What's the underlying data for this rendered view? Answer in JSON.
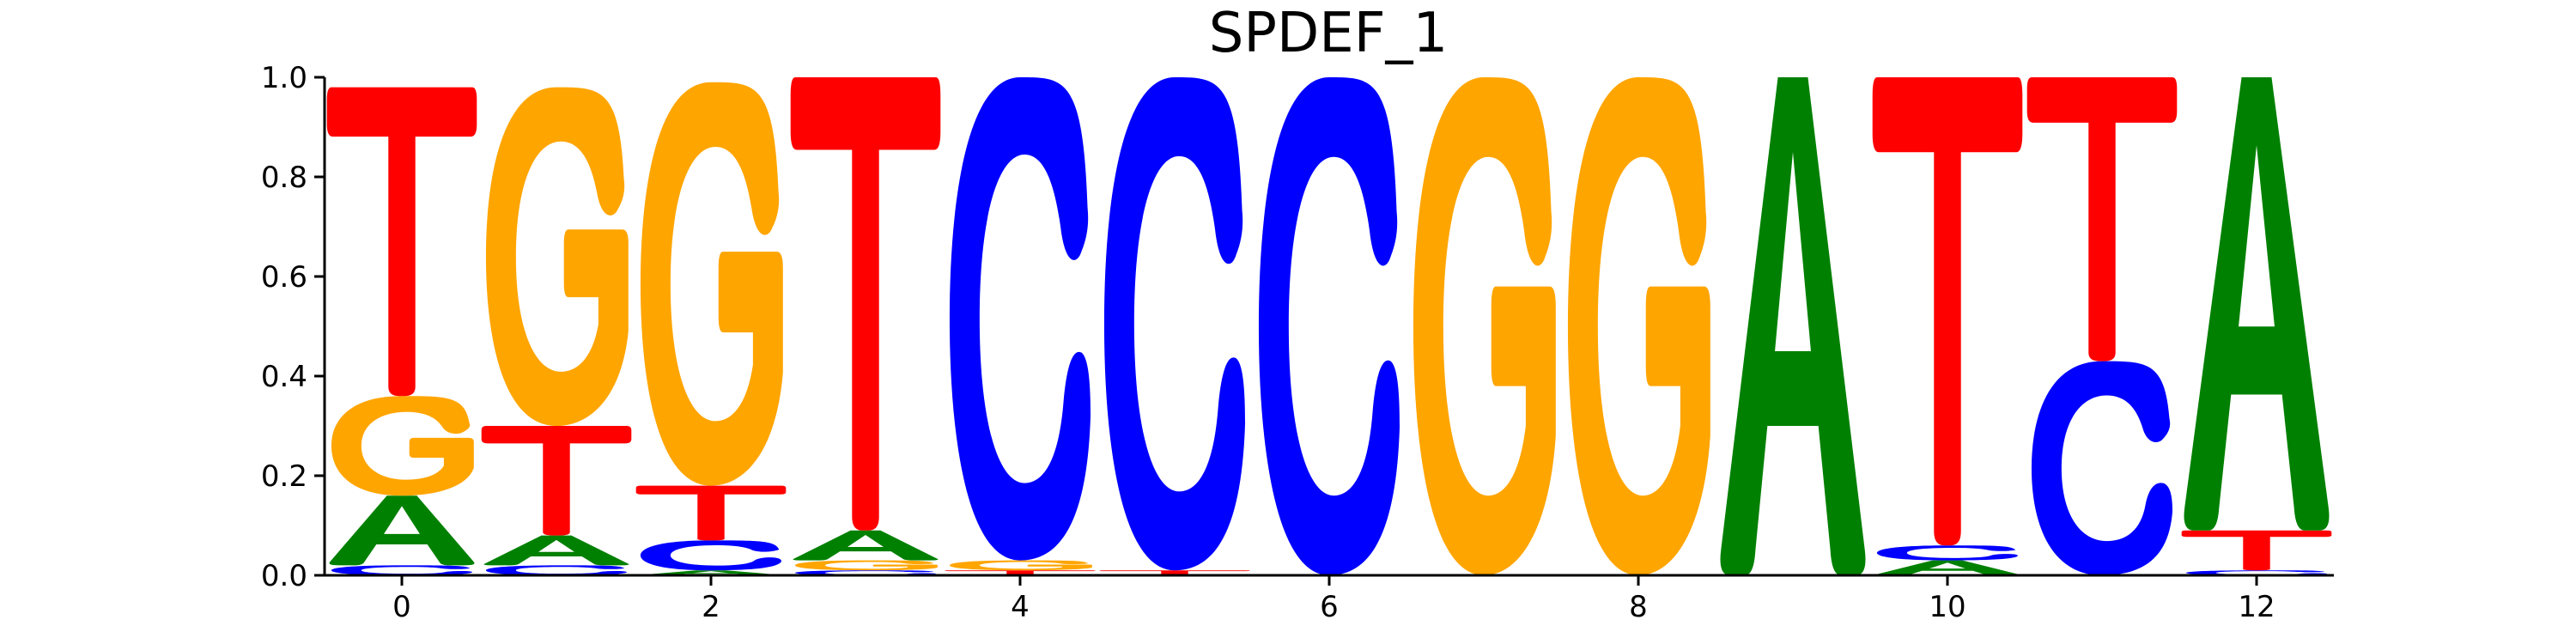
{
  "chart_data": {
    "type": "sequence-logo",
    "title": "SPDEF_1",
    "xlabel": "",
    "ylabel": "",
    "ylim": [
      0.0,
      1.0
    ],
    "xlim": [
      -0.5,
      12.5
    ],
    "x_ticks": [
      0,
      2,
      4,
      6,
      8,
      10,
      12
    ],
    "y_ticks": [
      0.0,
      0.2,
      0.4,
      0.6,
      0.8,
      1.0
    ],
    "x_tick_labels": [
      "0",
      "2",
      "4",
      "6",
      "8",
      "10",
      "12"
    ],
    "y_tick_labels": [
      "0.0",
      "0.2",
      "0.4",
      "0.6",
      "0.8",
      "1.0"
    ],
    "colors": {
      "A": "#008000",
      "C": "#0000ff",
      "G": "#ffa500",
      "T": "#ff0000"
    },
    "grid": false,
    "positions": [
      {
        "position": 0,
        "A": 0.14,
        "C": 0.02,
        "G": 0.2,
        "T": 0.62
      },
      {
        "position": 1,
        "A": 0.06,
        "C": 0.02,
        "G": 0.68,
        "T": 0.22
      },
      {
        "position": 2,
        "A": 0.01,
        "C": 0.06,
        "G": 0.81,
        "T": 0.11
      },
      {
        "position": 3,
        "A": 0.06,
        "C": 0.01,
        "G": 0.02,
        "T": 0.91
      },
      {
        "position": 4,
        "A": 0.0,
        "C": 0.97,
        "G": 0.02,
        "T": 0.01
      },
      {
        "position": 5,
        "A": 0.0,
        "C": 0.99,
        "G": 0.0,
        "T": 0.01
      },
      {
        "position": 6,
        "A": 0.0,
        "C": 1.0,
        "G": 0.0,
        "T": 0.0
      },
      {
        "position": 7,
        "A": 0.0,
        "C": 0.0,
        "G": 1.0,
        "T": 0.0
      },
      {
        "position": 8,
        "A": 0.0,
        "C": 0.0,
        "G": 1.0,
        "T": 0.0
      },
      {
        "position": 9,
        "A": 1.0,
        "C": 0.0,
        "G": 0.0,
        "T": 0.0
      },
      {
        "position": 10,
        "A": 0.03,
        "C": 0.03,
        "G": 0.0,
        "T": 0.94
      },
      {
        "position": 11,
        "A": 0.0,
        "C": 0.43,
        "G": 0.0,
        "T": 0.57
      },
      {
        "position": 12,
        "A": 0.91,
        "C": 0.01,
        "G": 0.0,
        "T": 0.08
      }
    ]
  }
}
